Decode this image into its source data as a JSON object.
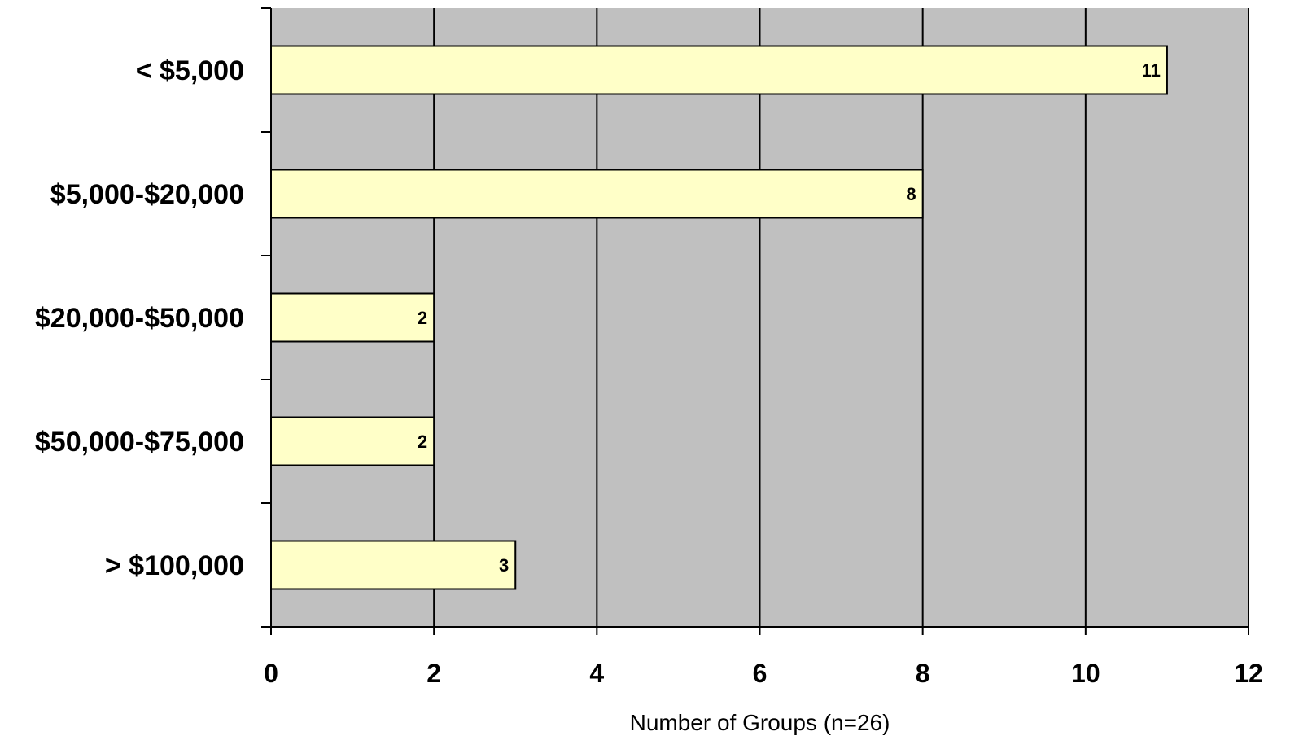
{
  "chart_data": {
    "type": "bar",
    "orientation": "horizontal",
    "categories": [
      "< $5,000",
      "$5,000-$20,000",
      "$20,000-$50,000",
      "$50,000-$75,000",
      "> $100,000"
    ],
    "values": [
      11,
      8,
      2,
      2,
      3
    ],
    "data_labels": [
      "11",
      "8",
      "2",
      "2",
      "3"
    ],
    "xlabel": "Number of Groups (n=26)",
    "ylabel": "",
    "xlim": [
      0,
      12
    ],
    "x_ticks": [
      0,
      2,
      4,
      6,
      8,
      10,
      12
    ],
    "grid": true,
    "legend": "none",
    "colors": {
      "plot_background": "#c0c0c0",
      "bar_fill": "#ffffc8",
      "bar_stroke": "#000000",
      "gridline": "#000000"
    }
  }
}
